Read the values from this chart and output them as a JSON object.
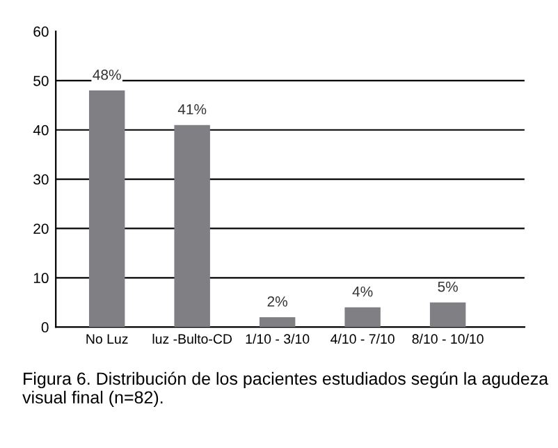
{
  "chart_data": {
    "type": "bar",
    "categories": [
      "No Luz",
      "luz -Bulto-CD",
      "1/10 - 3/10",
      "4/10 - 7/10",
      "8/10 - 10/10"
    ],
    "values": [
      48,
      41,
      2,
      4,
      5
    ],
    "color": "#7f7f84",
    "value_labels": [
      "48%",
      "41%",
      "2%",
      "4%",
      "5%"
    ],
    "ylim": [
      0,
      60
    ],
    "yticks": [
      0,
      10,
      20,
      30,
      40,
      50,
      60
    ],
    "grid": "y",
    "annotations": [
      "Figura 6. Distribución de los pacientes estudiados según la agudeza visual final (n=82)."
    ]
  }
}
